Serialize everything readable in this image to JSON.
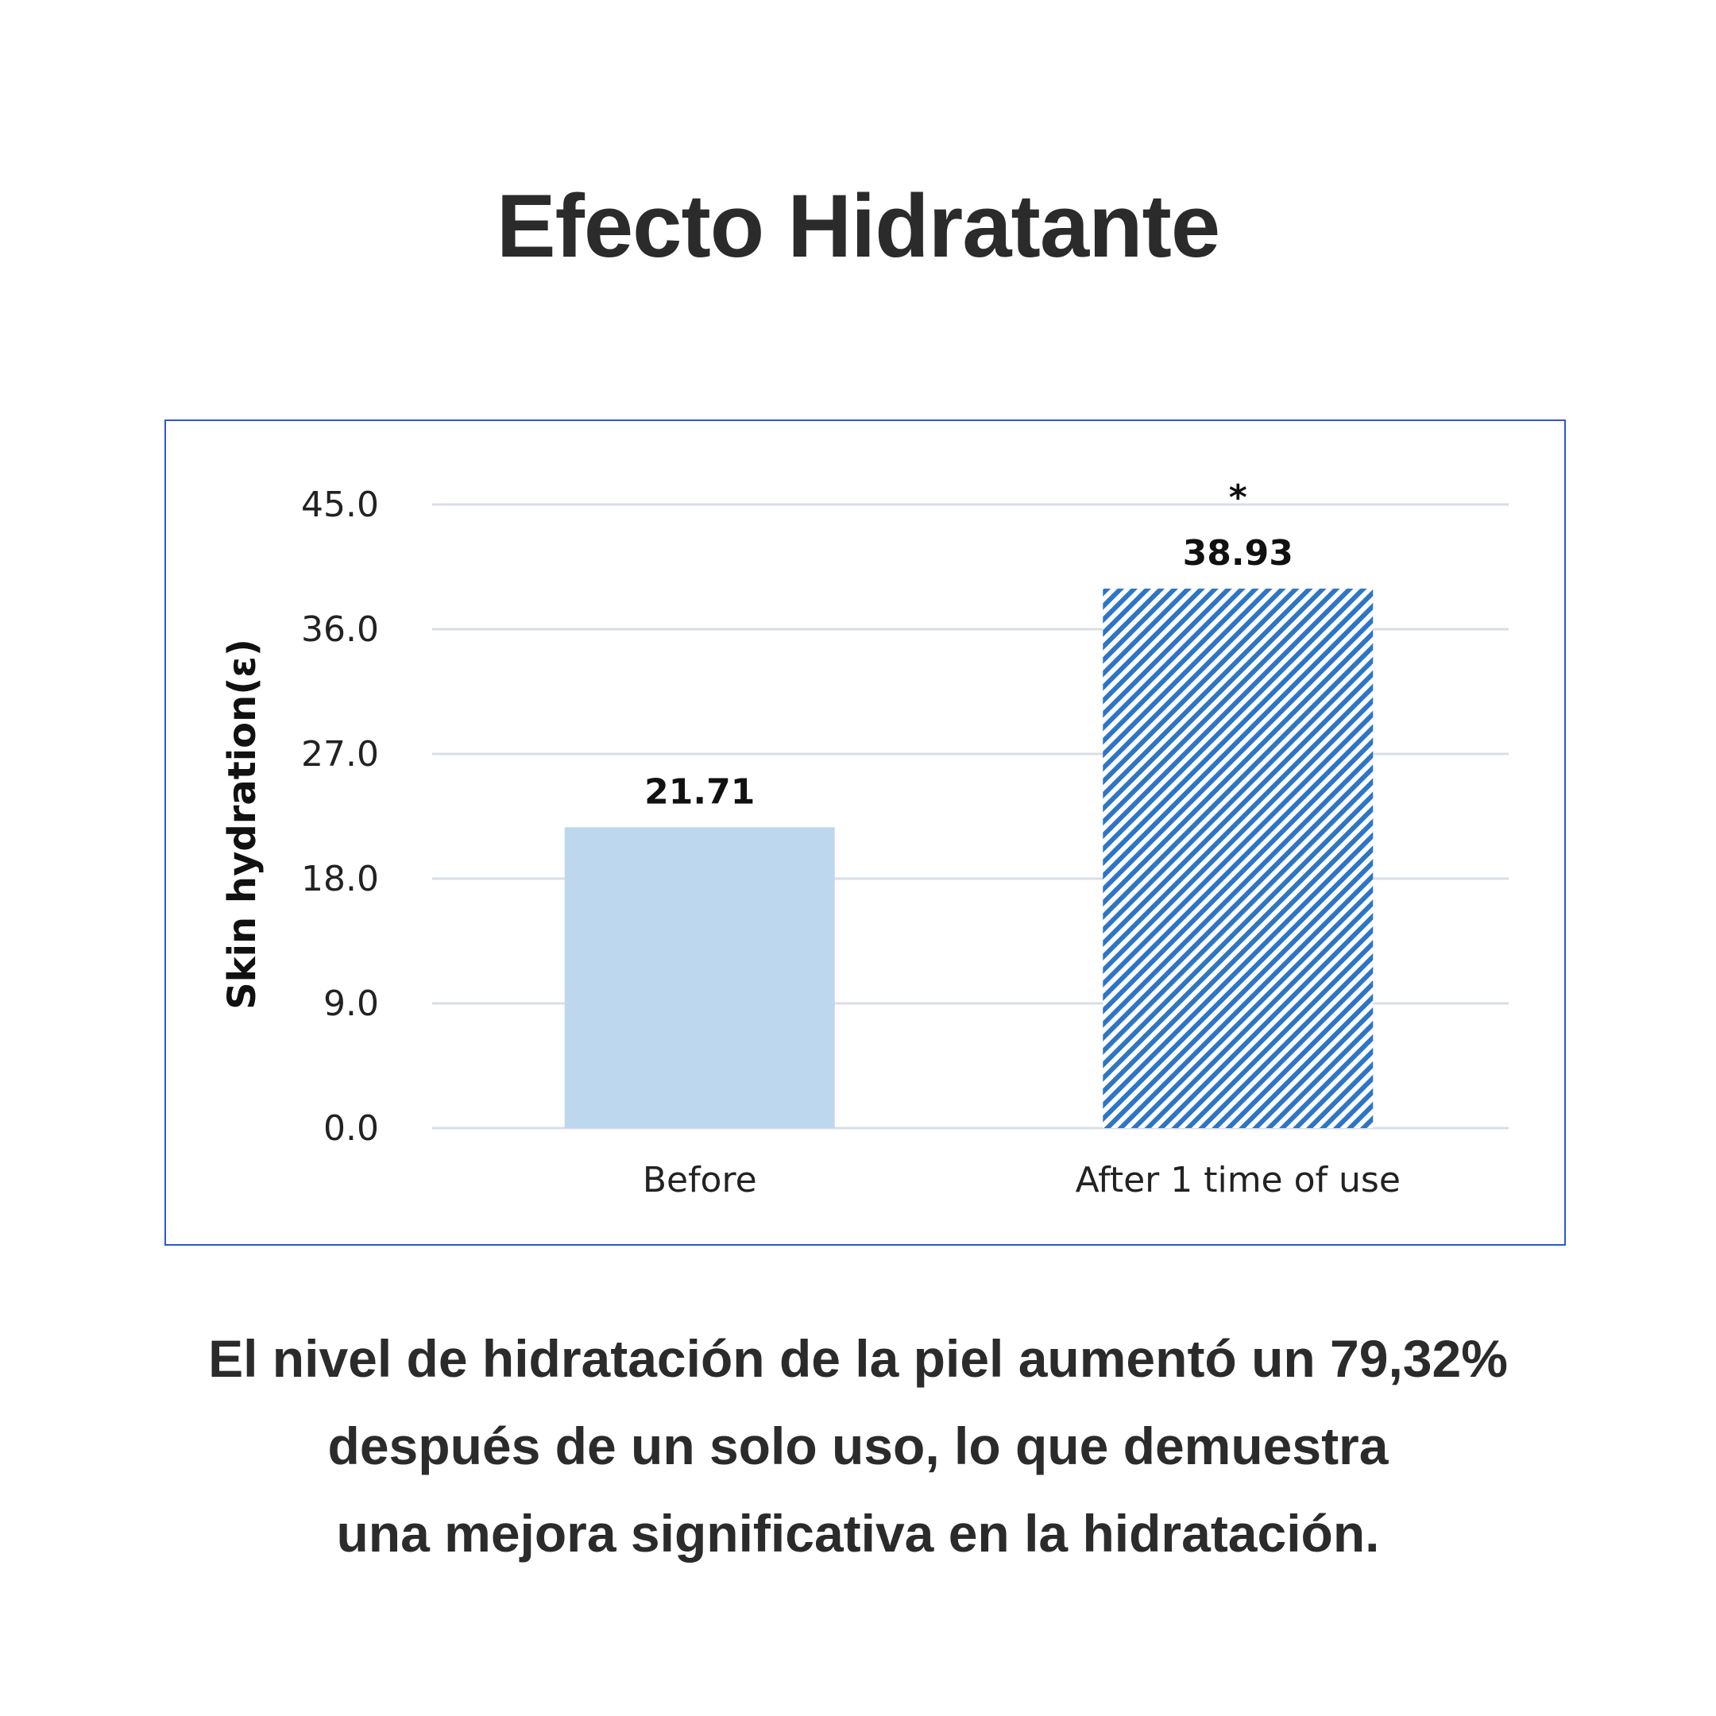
{
  "page": {
    "title": "Efecto Hidratante",
    "caption_lines": [
      "El nivel de hidratación de la piel aumentó un 79,32%",
      "después de un solo uso, lo que demuestra",
      "una mejora significativa en la hidratación."
    ]
  },
  "colors": {
    "text": "#2b2b2b",
    "frame": "#2f55d4",
    "before_bar": "#bdd7ee",
    "after_bar": "#2e75c6",
    "gridline": "#d9dee6"
  },
  "chart_data": {
    "type": "bar",
    "ylabel": "Skin hydration(ε)",
    "xlabel": "",
    "ylim": [
      0,
      45
    ],
    "yticks": [
      "0.0",
      "9.0",
      "18.0",
      "27.0",
      "36.0",
      "45.0"
    ],
    "ytick_values": [
      0,
      9,
      18,
      27,
      36,
      45
    ],
    "grid": true,
    "categories": [
      "Before",
      "After 1 time of use"
    ],
    "values": [
      21.71,
      38.93
    ],
    "value_labels": [
      "21.71",
      "38.93"
    ],
    "significance_marks": [
      "",
      "*"
    ],
    "fills": [
      "solid",
      "diagonal-hatch"
    ]
  }
}
